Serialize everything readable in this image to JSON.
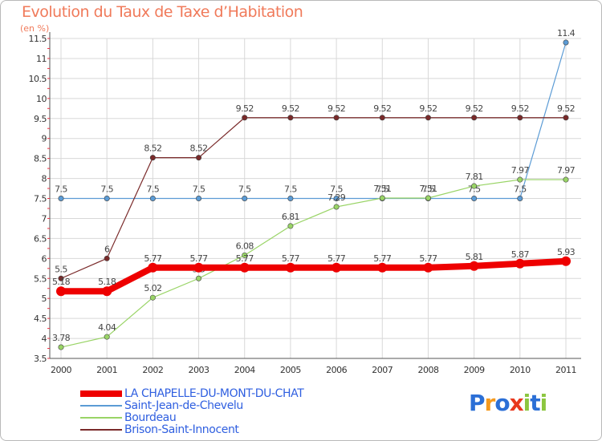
{
  "chart_data": {
    "type": "line",
    "title": "Evolution du Taux de Taxe d’Habitation",
    "ylabel": "(en %)",
    "x": [
      "2000",
      "2001",
      "2002",
      "2003",
      "2004",
      "2005",
      "2006",
      "2007",
      "2008",
      "2009",
      "2010",
      "2011"
    ],
    "ylim": [
      3.5,
      11.5
    ],
    "yticks": [
      "3.5",
      "4",
      "4.5",
      "5",
      "5.5",
      "6",
      "6.5",
      "7",
      "7.5",
      "8",
      "8.5",
      "9",
      "9.5",
      "10",
      "10.5",
      "11",
      "11.5"
    ],
    "series": [
      {
        "name": "Saint-Jean-de-Chevelu",
        "color": "#5b9bd5",
        "width": 1.2,
        "values": [
          7.5,
          7.5,
          7.5,
          7.5,
          7.5,
          7.5,
          7.5,
          7.5,
          7.5,
          7.5,
          7.5,
          11.4
        ],
        "labels": [
          "7.5",
          "7.5",
          "7.5",
          "7.5",
          "7.5",
          "7.5",
          "7.5",
          "7.5",
          "7.5",
          "7.5",
          "7.5",
          "11.4"
        ]
      },
      {
        "name": "Bourdeau",
        "color": "#99d466",
        "width": 1.2,
        "values": [
          3.78,
          4.04,
          5.02,
          5.5,
          6.08,
          6.81,
          7.29,
          7.51,
          7.51,
          7.81,
          7.97,
          7.97
        ],
        "labels": [
          "3.78",
          "4.04",
          "5.02",
          "5.5",
          "6.08",
          "6.81",
          "7.29",
          "7.51",
          "7.51",
          "7.81",
          "7.97",
          "7.97"
        ]
      },
      {
        "name": "Brison-Saint-Innocent",
        "color": "#7a2a2a",
        "width": 1.2,
        "values": [
          5.5,
          6,
          8.52,
          8.52,
          9.52,
          9.52,
          9.52,
          9.52,
          9.52,
          9.52,
          9.52,
          9.52
        ],
        "labels": [
          "5.5",
          "6",
          "8.52",
          "8.52",
          "9.52",
          "9.52",
          "9.52",
          "9.52",
          "9.52",
          "9.52",
          "9.52",
          "9.52"
        ]
      },
      {
        "name": "LA CHAPELLE-DU-MONT-DU-CHAT",
        "color": "#ee0000",
        "width": 8,
        "values": [
          5.18,
          5.18,
          5.77,
          5.77,
          5.77,
          5.77,
          5.77,
          5.77,
          5.77,
          5.81,
          5.87,
          5.93
        ],
        "labels": [
          "5.18",
          "5.18",
          "5.77",
          "5.77",
          "5.77",
          "5.77",
          "5.77",
          "5.77",
          "5.77",
          "5.81",
          "5.87",
          "5.93"
        ]
      }
    ],
    "legend_order": [
      "LA CHAPELLE-DU-MONT-DU-CHAT",
      "Saint-Jean-de-Chevelu",
      "Bourdeau",
      "Brison-Saint-Innocent"
    ],
    "grid": true
  },
  "legend": {
    "items": [
      {
        "label": "LA CHAPELLE-DU-MONT-DU-CHAT",
        "color": "#ee0000",
        "width": 8
      },
      {
        "label": "Saint-Jean-de-Chevelu",
        "color": "#5b9bd5",
        "width": 2
      },
      {
        "label": "Bourdeau",
        "color": "#99d466",
        "width": 2
      },
      {
        "label": "Brison-Saint-Innocent",
        "color": "#7a2a2a",
        "width": 2
      }
    ]
  },
  "brand": {
    "letters": [
      "P",
      "r",
      "o",
      "x",
      "i",
      "t",
      "i"
    ],
    "colors": [
      "#2b6fd6",
      "#f59a1f",
      "#2b6fd6",
      "#e8381d",
      "#8cc63f",
      "#2b6fd6",
      "#8cc63f"
    ]
  }
}
